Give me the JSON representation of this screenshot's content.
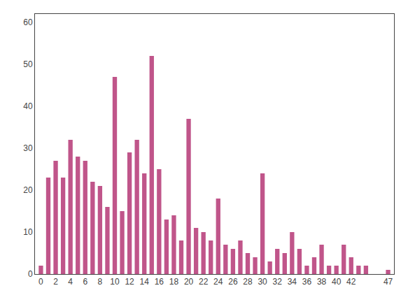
{
  "chart_data": {
    "type": "bar",
    "x": [
      0,
      1,
      2,
      3,
      4,
      5,
      6,
      7,
      8,
      9,
      10,
      11,
      12,
      13,
      14,
      15,
      16,
      17,
      18,
      19,
      20,
      21,
      22,
      23,
      24,
      25,
      26,
      27,
      28,
      29,
      30,
      31,
      32,
      33,
      34,
      35,
      36,
      37,
      38,
      39,
      40,
      41,
      42,
      43,
      44,
      45,
      46,
      47
    ],
    "values": [
      2,
      23,
      27,
      23,
      32,
      28,
      27,
      22,
      21,
      16,
      47,
      15,
      29,
      32,
      24,
      52,
      25,
      13,
      14,
      8,
      37,
      11,
      10,
      8,
      18,
      7,
      6,
      8,
      5,
      4,
      24,
      3,
      6,
      5,
      10,
      6,
      2,
      4,
      7,
      2,
      2,
      7,
      4,
      2,
      2,
      0,
      0,
      1
    ],
    "color": "#c0558a",
    "xlim": [
      -0.8,
      47.8
    ],
    "xticks": [
      0,
      2,
      4,
      6,
      8,
      10,
      12,
      14,
      16,
      18,
      20,
      22,
      24,
      26,
      28,
      30,
      32,
      34,
      36,
      38,
      40,
      42,
      47
    ],
    "ylim": [
      0,
      62
    ],
    "yticks": [
      0,
      10,
      20,
      30,
      40,
      50,
      60
    ],
    "grid": false
  }
}
